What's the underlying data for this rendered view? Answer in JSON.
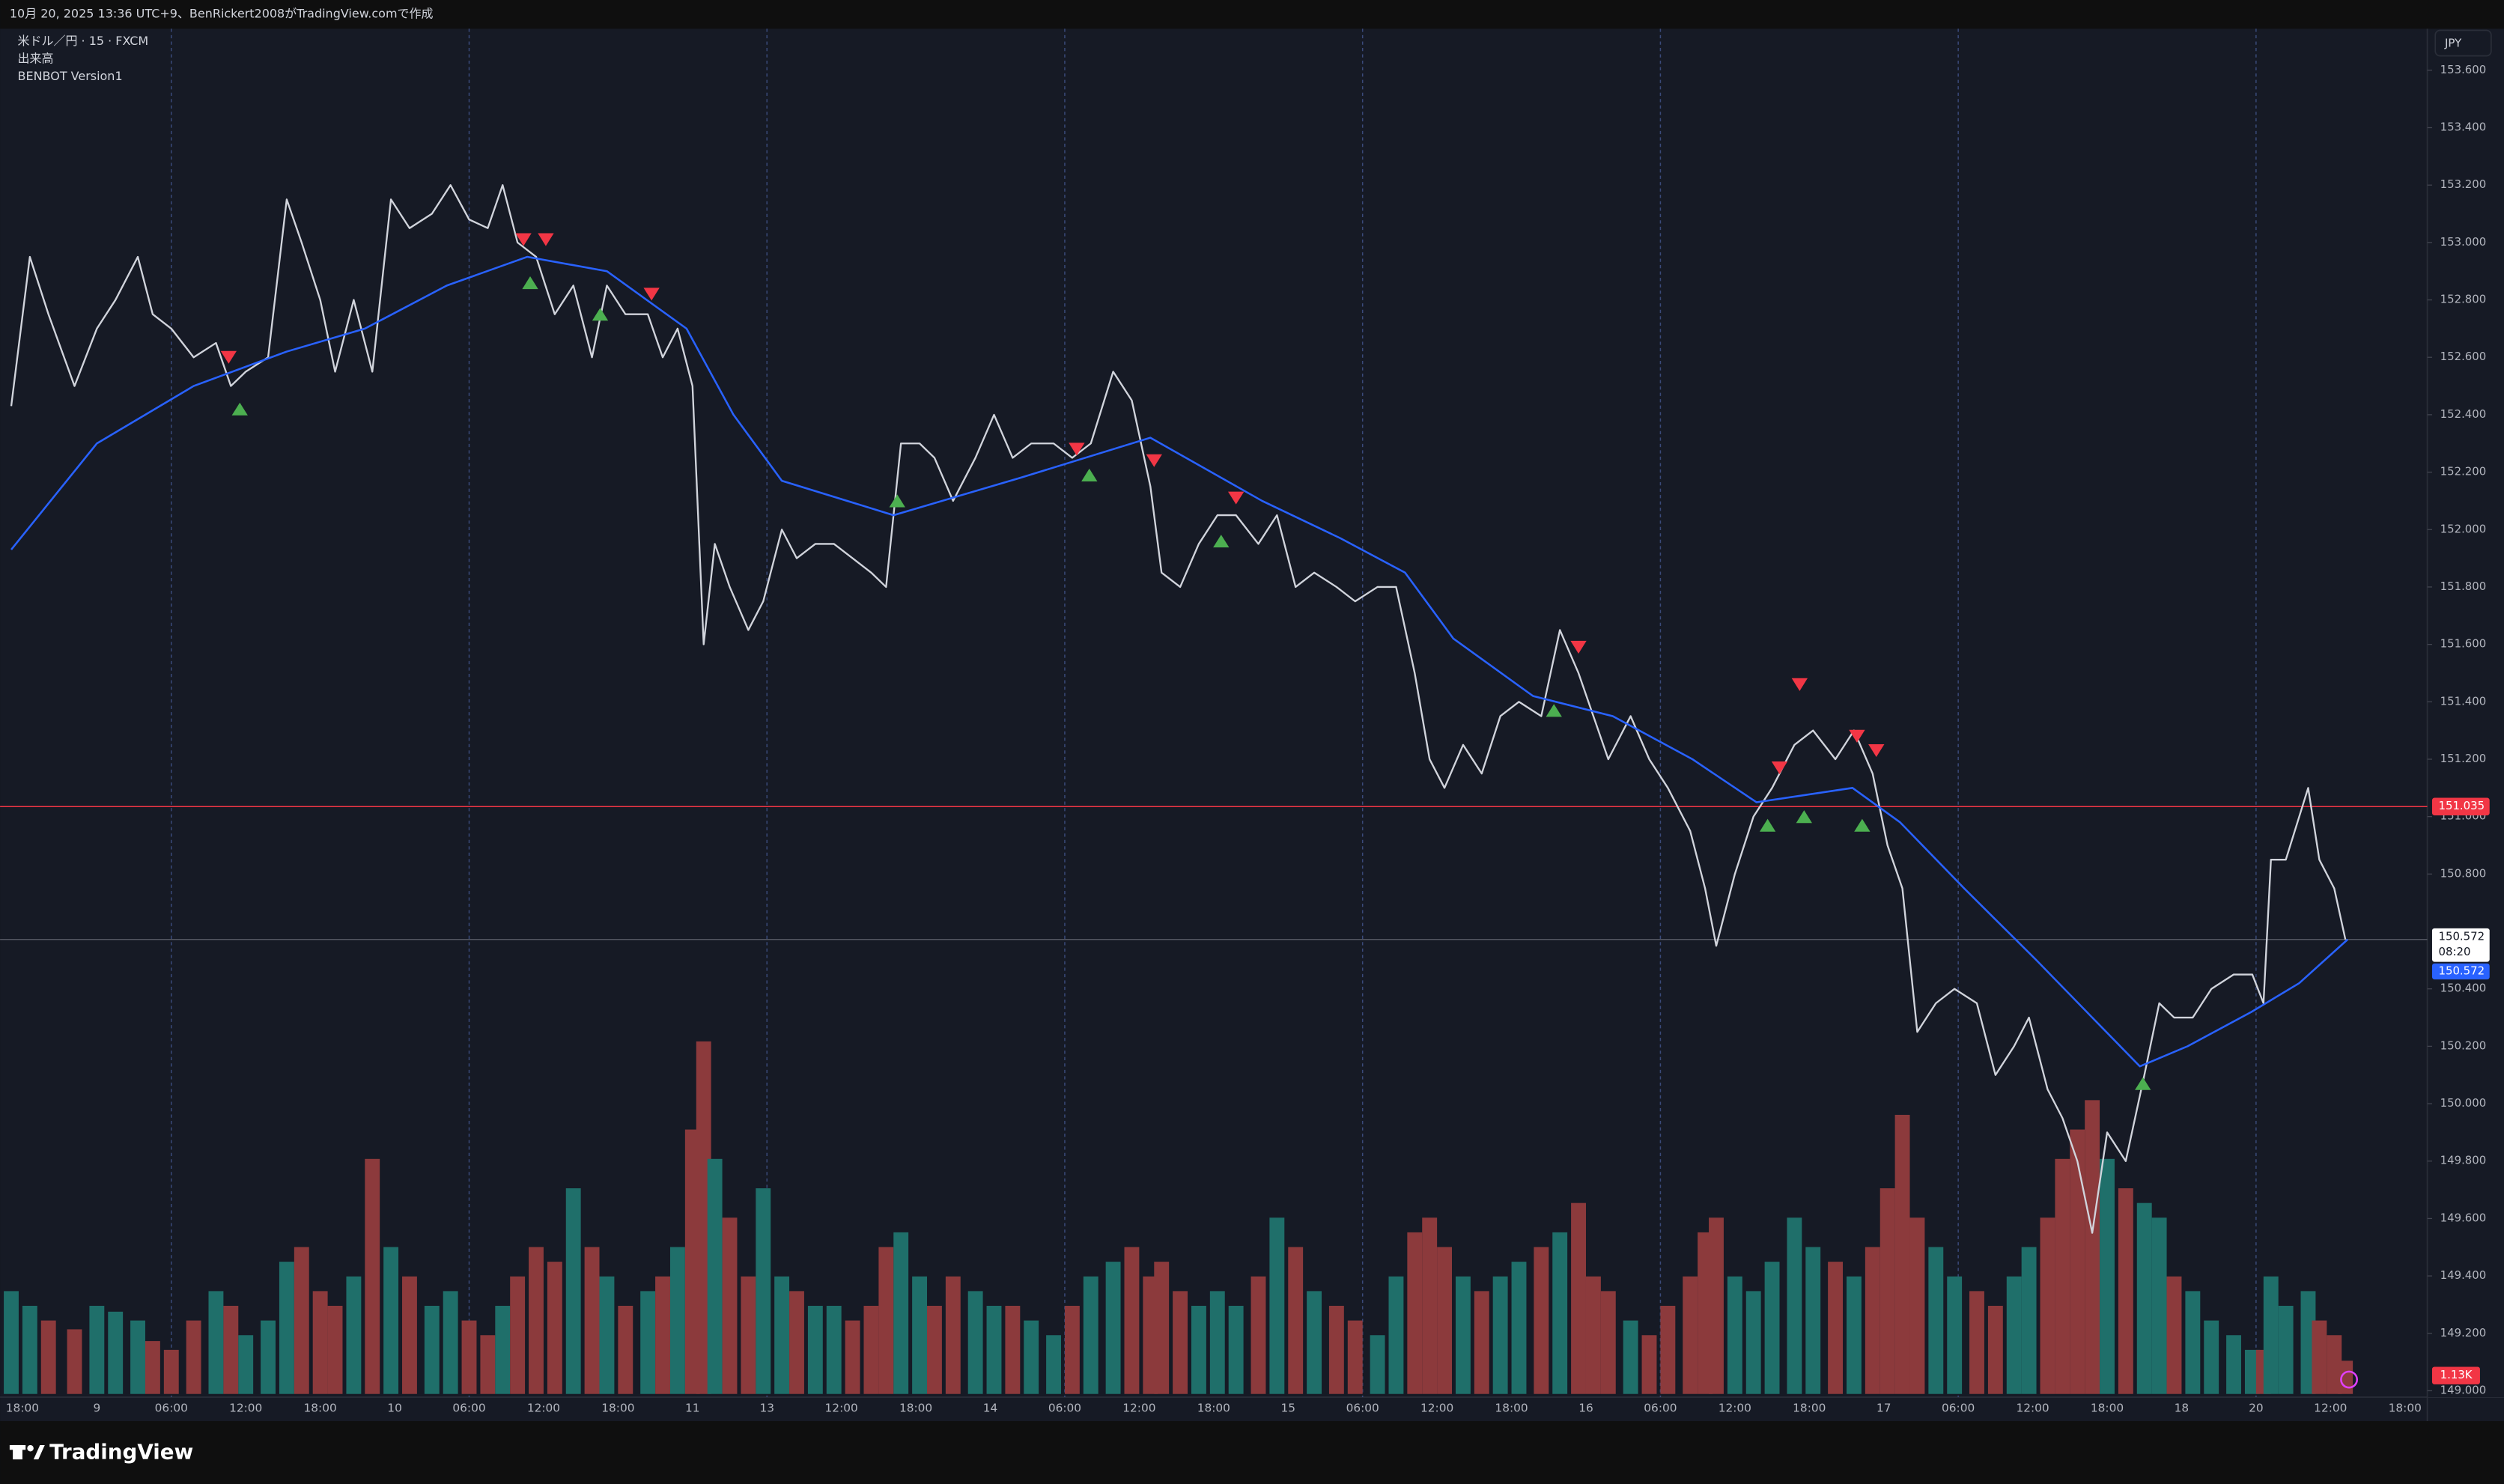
{
  "header": {
    "caption": "10月 20, 2025 13:36 UTC+9、BenRickert2008がTradingView.comで作成"
  },
  "footer": {
    "brand": "TradingView"
  },
  "chart_data": {
    "type": "line",
    "legend": [
      "米ドル／円 · 15 · FXCM",
      "出来高",
      "BENBOT Version1"
    ],
    "currency": "JPY",
    "xlim": [
      -0.15,
      32.3
    ],
    "ylim": [
      149.0,
      153.6
    ],
    "xticks": [
      {
        "value": 0,
        "label": "18:00"
      },
      {
        "value": 1,
        "label": "9"
      },
      {
        "value": 2,
        "label": "06:00"
      },
      {
        "value": 3,
        "label": "12:00"
      },
      {
        "value": 4,
        "label": "18:00"
      },
      {
        "value": 5,
        "label": "10"
      },
      {
        "value": 6,
        "label": "06:00"
      },
      {
        "value": 7,
        "label": "12:00"
      },
      {
        "value": 8,
        "label": "18:00"
      },
      {
        "value": 9,
        "label": "11"
      },
      {
        "value": 10,
        "label": "13"
      },
      {
        "value": 11,
        "label": "12:00"
      },
      {
        "value": 12,
        "label": "18:00"
      },
      {
        "value": 13,
        "label": "14"
      },
      {
        "value": 14,
        "label": "06:00"
      },
      {
        "value": 15,
        "label": "12:00"
      },
      {
        "value": 16,
        "label": "18:00"
      },
      {
        "value": 17,
        "label": "15"
      },
      {
        "value": 18,
        "label": "06:00"
      },
      {
        "value": 19,
        "label": "12:00"
      },
      {
        "value": 20,
        "label": "18:00"
      },
      {
        "value": 21,
        "label": "16"
      },
      {
        "value": 22,
        "label": "06:00"
      },
      {
        "value": 23,
        "label": "12:00"
      },
      {
        "value": 24,
        "label": "18:00"
      },
      {
        "value": 25,
        "label": "17"
      },
      {
        "value": 26,
        "label": "06:00"
      },
      {
        "value": 27,
        "label": "12:00"
      },
      {
        "value": 28,
        "label": "18:00"
      },
      {
        "value": 29,
        "label": "18"
      },
      {
        "value": 30,
        "label": "20"
      },
      {
        "value": 31,
        "label": "12:00"
      },
      {
        "value": 32,
        "label": "18:00"
      }
    ],
    "yticks": [
      {
        "value": 153.6,
        "label": "153.600"
      },
      {
        "value": 153.4,
        "label": "153.400"
      },
      {
        "value": 153.2,
        "label": "153.200"
      },
      {
        "value": 153.0,
        "label": "153.000"
      },
      {
        "value": 152.8,
        "label": "152.800"
      },
      {
        "value": 152.6,
        "label": "152.600"
      },
      {
        "value": 152.4,
        "label": "152.400"
      },
      {
        "value": 152.2,
        "label": "152.200"
      },
      {
        "value": 152.0,
        "label": "152.000"
      },
      {
        "value": 151.8,
        "label": "151.800"
      },
      {
        "value": 151.6,
        "label": "151.600"
      },
      {
        "value": 151.4,
        "label": "151.400"
      },
      {
        "value": 151.2,
        "label": "151.200"
      },
      {
        "value": 151.0,
        "label": "151.000"
      },
      {
        "value": 150.8,
        "label": "150.800"
      },
      {
        "value": 150.4,
        "label": "150.400"
      },
      {
        "value": 150.2,
        "label": "150.200"
      },
      {
        "value": 150.0,
        "label": "150.000"
      },
      {
        "value": 149.8,
        "label": "149.800"
      },
      {
        "value": 149.6,
        "label": "149.600"
      },
      {
        "value": 149.4,
        "label": "149.400"
      },
      {
        "value": 149.2,
        "label": "149.200"
      },
      {
        "value": 149.0,
        "label": "149.000"
      }
    ],
    "x": [
      -0.15,
      0.1,
      0.35,
      0.7,
      1.0,
      1.25,
      1.55,
      1.75,
      2.0,
      2.3,
      2.6,
      2.8,
      3.0,
      3.3,
      3.55,
      3.75,
      4.0,
      4.2,
      4.45,
      4.7,
      4.95,
      5.2,
      5.5,
      5.75,
      6.0,
      6.25,
      6.45,
      6.65,
      6.9,
      7.15,
      7.4,
      7.65,
      7.85,
      8.1,
      8.4,
      8.6,
      8.8,
      9.0,
      9.15,
      9.3,
      9.5,
      9.75,
      9.95,
      10.2,
      10.4,
      10.65,
      10.9,
      11.15,
      11.4,
      11.6,
      11.8,
      12.05,
      12.25,
      12.5,
      12.8,
      13.05,
      13.3,
      13.55,
      13.85,
      14.1,
      14.35,
      14.65,
      14.9,
      15.15,
      15.3,
      15.55,
      15.8,
      16.05,
      16.3,
      16.6,
      16.85,
      17.1,
      17.35,
      17.65,
      17.9,
      18.2,
      18.45,
      18.7,
      18.9,
      19.1,
      19.35,
      19.6,
      19.85,
      20.1,
      20.4,
      20.65,
      20.9,
      21.1,
      21.3,
      21.6,
      21.85,
      22.1,
      22.4,
      22.6,
      22.75,
      23.0,
      23.25,
      23.5,
      23.8,
      24.05,
      24.35,
      24.6,
      24.85,
      25.05,
      25.25,
      25.45,
      25.7,
      25.95,
      26.25,
      26.5,
      26.75,
      26.95,
      27.2,
      27.4,
      27.6,
      27.8,
      28.0,
      28.25,
      28.5,
      28.7,
      28.9,
      29.15,
      29.4,
      29.7,
      29.95,
      30.1,
      30.2,
      30.4,
      30.7,
      30.85,
      31.05,
      31.2
    ],
    "series": [
      {
        "name": "米ドル／円 · 15 · FXCM",
        "color": "#d1d4dc",
        "values": [
          152.43,
          152.95,
          152.75,
          152.5,
          152.7,
          152.8,
          152.95,
          152.75,
          152.7,
          152.6,
          152.65,
          152.5,
          152.55,
          152.6,
          153.15,
          153.0,
          152.8,
          152.55,
          152.8,
          152.55,
          153.15,
          153.05,
          153.1,
          153.2,
          153.08,
          153.05,
          153.2,
          153.0,
          152.95,
          152.75,
          152.85,
          152.6,
          152.85,
          152.75,
          152.75,
          152.6,
          152.7,
          152.5,
          151.6,
          151.95,
          151.8,
          151.65,
          151.75,
          152.0,
          151.9,
          151.95,
          151.95,
          151.9,
          151.85,
          151.8,
          152.3,
          152.3,
          152.25,
          152.1,
          152.25,
          152.4,
          152.25,
          152.3,
          152.3,
          152.25,
          152.3,
          152.55,
          152.45,
          152.15,
          151.85,
          151.8,
          151.95,
          152.05,
          152.05,
          151.95,
          152.05,
          151.8,
          151.85,
          151.8,
          151.75,
          151.8,
          151.8,
          151.5,
          151.2,
          151.1,
          151.25,
          151.15,
          151.35,
          151.4,
          151.35,
          151.65,
          151.5,
          151.35,
          151.2,
          151.35,
          151.2,
          151.1,
          150.95,
          150.75,
          150.55,
          150.8,
          151.0,
          151.1,
          151.25,
          151.3,
          151.2,
          151.3,
          151.15,
          150.9,
          150.75,
          150.25,
          150.35,
          150.4,
          150.35,
          150.1,
          150.2,
          150.3,
          150.05,
          149.95,
          149.8,
          149.55,
          149.9,
          149.8,
          150.1,
          150.35,
          150.3,
          150.3,
          150.4,
          150.45,
          150.45,
          150.35,
          150.85,
          150.85,
          151.1,
          150.85,
          150.75,
          150.572
        ]
      },
      {
        "name": "BENBOT Version1",
        "color": "#2962ff",
        "x": [
          -0.15,
          1.0,
          2.3,
          3.55,
          4.6,
          5.7,
          6.78,
          7.85,
          8.92,
          9.55,
          10.2,
          11.7,
          13.4,
          15.15,
          16.65,
          17.7,
          18.57,
          19.22,
          20.29,
          21.36,
          22.43,
          23.29,
          24.58,
          25.22,
          26.08,
          27.05,
          27.8,
          28.44,
          29.08,
          29.94,
          30.58,
          31.23
        ],
        "values": [
          151.93,
          152.3,
          152.5,
          152.62,
          152.7,
          152.85,
          152.95,
          152.9,
          152.7,
          152.4,
          152.17,
          152.05,
          152.18,
          152.32,
          152.1,
          151.97,
          151.85,
          151.62,
          151.42,
          151.35,
          151.2,
          151.05,
          151.1,
          150.98,
          150.75,
          150.5,
          150.3,
          150.13,
          150.2,
          150.32,
          150.42,
          150.572
        ]
      }
    ],
    "volume": {
      "name": "出来高",
      "vlim": [
        0,
        12.5
      ],
      "up_color": "#1f6f6a",
      "down_color": "#8c3a3c",
      "values": [
        3.5,
        3.0,
        2.5,
        2.2,
        3.0,
        2.8,
        2.5,
        1.8,
        1.5,
        2.5,
        3.5,
        3.0,
        2.0,
        2.5,
        4.5,
        5.0,
        3.5,
        3.0,
        4.0,
        8.0,
        5.0,
        4.0,
        3.0,
        3.5,
        2.5,
        2.0,
        3.0,
        4.0,
        5.0,
        4.5,
        7.0,
        5.0,
        4.0,
        3.0,
        3.5,
        4.0,
        5.0,
        9.0,
        12.0,
        8.0,
        6.0,
        4.0,
        7.0,
        4.0,
        3.5,
        3.0,
        3.0,
        2.5,
        3.0,
        5.0,
        5.5,
        4.0,
        3.0,
        4.0,
        3.5,
        3.0,
        3.0,
        2.5,
        2.0,
        3.0,
        4.0,
        4.5,
        5.0,
        4.0,
        4.5,
        3.5,
        3.0,
        3.5,
        3.0,
        4.0,
        6.0,
        5.0,
        3.5,
        3.0,
        2.5,
        2.0,
        4.0,
        5.5,
        6.0,
        5.0,
        4.0,
        3.5,
        4.0,
        4.5,
        5.0,
        5.5,
        6.5,
        4.0,
        3.5,
        2.5,
        2.0,
        3.0,
        4.0,
        5.5,
        6.0,
        4.0,
        3.5,
        4.5,
        6.0,
        5.0,
        4.5,
        4.0,
        5.0,
        7.0,
        9.5,
        6.0,
        5.0,
        4.0,
        3.5,
        3.0,
        4.0,
        5.0,
        6.0,
        8.0,
        9.0,
        10.0,
        8.0,
        7.0,
        6.5,
        6.0,
        4.0,
        3.5,
        2.5,
        2.0,
        1.5,
        1.5,
        4.0,
        3.0,
        3.5,
        2.5,
        2.0,
        1.13
      ],
      "value_labels": [
        null,
        null,
        null,
        null,
        null,
        null,
        null,
        null,
        null,
        null,
        null,
        null,
        null,
        null,
        null,
        null,
        null,
        null,
        null,
        null,
        null,
        null,
        null,
        null,
        null,
        null,
        null,
        null,
        null,
        null,
        null,
        null,
        null,
        null,
        null,
        null,
        null,
        null,
        null,
        null,
        null,
        null,
        null,
        null,
        null,
        null,
        null,
        null,
        null,
        null,
        null,
        null,
        null,
        null,
        null,
        null,
        null,
        null,
        null,
        null,
        null,
        null,
        null,
        null,
        null,
        null,
        null,
        null,
        null,
        null,
        null,
        null,
        null,
        null,
        null,
        null,
        null,
        null,
        null,
        null,
        null,
        null,
        null,
        null,
        null,
        null,
        null,
        null,
        null,
        null,
        null,
        null,
        null,
        null,
        null,
        null,
        null,
        null,
        null,
        null,
        null,
        null,
        null,
        null,
        null,
        null,
        null,
        null,
        null,
        null,
        null,
        null,
        null,
        null,
        null,
        null,
        null,
        null,
        null,
        null,
        null,
        null,
        null,
        null,
        null,
        null,
        null,
        null,
        null,
        null,
        null,
        "1.13K"
      ]
    },
    "sell_signals": {
      "color": "#f23645",
      "x": [
        2.77,
        6.73,
        7.03,
        8.45,
        14.16,
        15.2,
        16.3,
        20.9,
        23.87,
        23.6,
        24.64,
        24.9
      ],
      "values": [
        152.6,
        153.01,
        153.01,
        152.82,
        152.28,
        152.24,
        152.11,
        151.59,
        151.46,
        151.17,
        151.28,
        151.23
      ]
    },
    "buy_signals": {
      "color": "#4caf50",
      "x": [
        2.92,
        6.82,
        7.76,
        11.75,
        14.33,
        16.1,
        20.57,
        23.44,
        23.93,
        24.71,
        28.48
      ],
      "values": [
        152.42,
        152.86,
        152.75,
        152.1,
        152.19,
        151.96,
        151.37,
        150.97,
        151.0,
        150.97,
        150.07
      ]
    },
    "alert_line": {
      "value": 151.035,
      "color": "#f23645"
    },
    "countdown": "08:20"
  }
}
